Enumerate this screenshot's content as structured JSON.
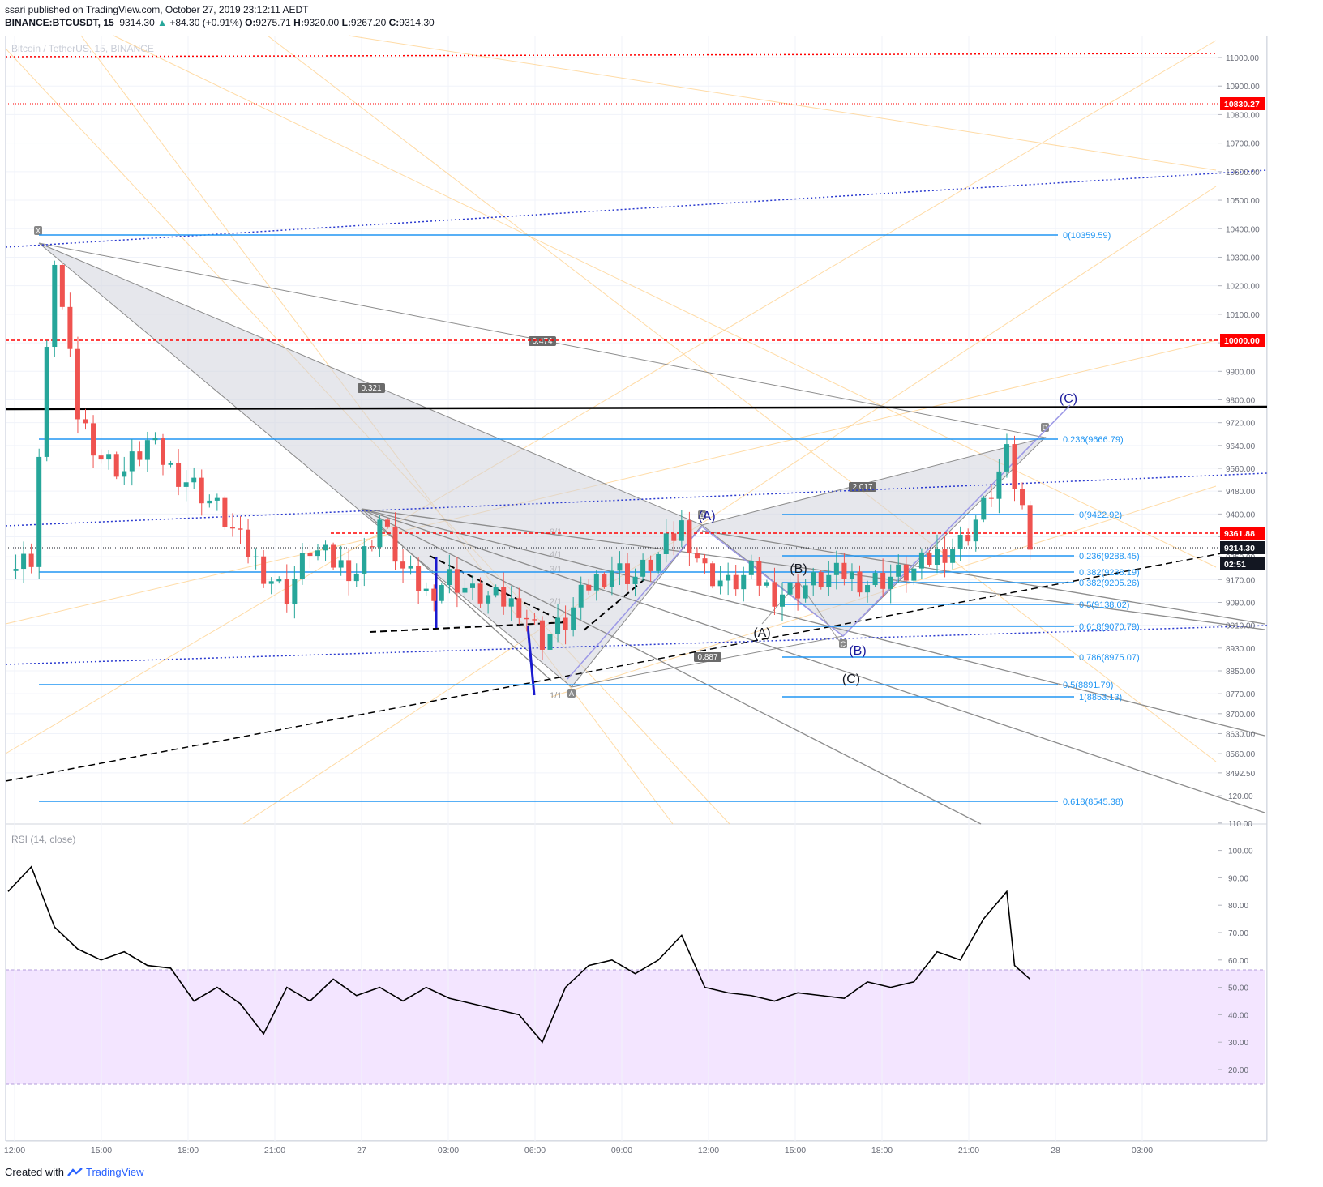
{
  "header": {
    "publisher_line": "ssari published on TradingView.com, October 27, 2019 23:12:11 AEDT",
    "symbol": "BINANCE:BTCUSDT, 15",
    "last": "9314.30",
    "arrow": "▲",
    "change": "+84.30 (+0.91%)",
    "open_label": "O:",
    "open": "9275.71",
    "high_label": "H:",
    "high": "9320.00",
    "low_label": "L:",
    "low": "9267.20",
    "close_label": "C:",
    "close": "9314.30",
    "watermark": "Bitcoin / TetherUS, 15, BINANCE"
  },
  "footer": {
    "created_with": "Created with",
    "brand": "TradingView"
  },
  "colors": {
    "up": "#26a69a",
    "down": "#ef5350",
    "fib": "#2196f3",
    "red_line": "#ff0000",
    "harmonic_fill": "#d1d4dc",
    "rsi_band": "#f3e5ff"
  },
  "price_axis": {
    "ticks": [
      "11000.00",
      "10900.00",
      "10800.00",
      "10700.00",
      "10600.00",
      "10500.00",
      "10400.00",
      "10300.00",
      "10200.00",
      "10100.00",
      "10000.00",
      "9900.00",
      "9800.00",
      "9720.00",
      "9640.00",
      "9560.00",
      "9480.00",
      "9400.00",
      "9320.00",
      "9250.00",
      "9170.00",
      "9090.00",
      "9010.00",
      "8930.00",
      "8850.00",
      "8770.00",
      "8700.00",
      "8630.00",
      "8560.00",
      "8492.50"
    ],
    "labels": [
      {
        "text": "10830.27",
        "style": "red"
      },
      {
        "text": "10000.00",
        "style": "red"
      },
      {
        "text": "9361.88",
        "style": "red"
      },
      {
        "text": "9314.30",
        "style": "dark"
      },
      {
        "text": "02:51",
        "style": "dark"
      }
    ]
  },
  "rsi": {
    "title": "RSI (14, close)",
    "ticks": [
      "120.00",
      "110.00",
      "100.00",
      "90.00",
      "80.00",
      "70.00",
      "60.00",
      "50.00",
      "40.00",
      "30.00",
      "20.00"
    ],
    "band": [
      30,
      70
    ]
  },
  "time_axis": [
    "12:00",
    "15:00",
    "18:00",
    "21:00",
    "27",
    "03:00",
    "06:00",
    "09:00",
    "12:00",
    "15:00",
    "18:00",
    "21:00",
    "28",
    "03:00"
  ],
  "fib_labels": [
    "0(10359.59)",
    "0.236(9666.79)",
    "0(9422.92)",
    "0.236(9288.45)",
    "0.382(9238.19)",
    "0.382(9205.26)",
    "0.5(9138.02)",
    "0.618(9070.79)",
    "0.786(8975.07)",
    "0.5(8891.79)",
    "1(8853.13)",
    "0.618(8545.38)"
  ],
  "pattern_labels": {
    "ratios": [
      "0.474",
      "0.321",
      "2.017",
      "0.887"
    ],
    "points": [
      "X",
      "A",
      "B",
      "C",
      "D"
    ],
    "waves_black": [
      "(A)",
      "(B)",
      "(C)"
    ],
    "waves_blue": [
      "(A)",
      "(B)",
      "(C)"
    ],
    "gann": [
      "8/1",
      "4/1",
      "3/1",
      "2/1",
      "1/1"
    ]
  },
  "chart_data": {
    "type": "candlestick",
    "symbol": "BTCUSDT",
    "interval": "15",
    "ohlc_last": {
      "open": 9275.71,
      "high": 9320.0,
      "low": 9267.2,
      "close": 9314.3
    },
    "ylim": [
      8492.5,
      11060
    ],
    "horizontal_levels": [
      10830.27,
      10000.0,
      9361.88
    ],
    "close_path": [
      [
        0,
        9200
      ],
      [
        3,
        9250
      ],
      [
        6,
        10300
      ],
      [
        9,
        9750
      ],
      [
        12,
        9600
      ],
      [
        15,
        9550
      ],
      [
        18,
        9650
      ],
      [
        21,
        9560
      ],
      [
        24,
        9500
      ],
      [
        27,
        9420
      ],
      [
        30,
        9300
      ],
      [
        33,
        9200
      ],
      [
        36,
        9120
      ],
      [
        39,
        9280
      ],
      [
        42,
        9230
      ],
      [
        45,
        9200
      ],
      [
        48,
        9380
      ],
      [
        51,
        9200
      ],
      [
        54,
        9120
      ],
      [
        57,
        9180
      ],
      [
        60,
        9120
      ],
      [
        63,
        9100
      ],
      [
        66,
        9080
      ],
      [
        69,
        8960
      ],
      [
        72,
        9020
      ],
      [
        75,
        9150
      ],
      [
        78,
        9210
      ],
      [
        81,
        9180
      ],
      [
        84,
        9250
      ],
      [
        87,
        9360
      ],
      [
        90,
        9200
      ],
      [
        93,
        9150
      ],
      [
        96,
        9190
      ],
      [
        99,
        9120
      ],
      [
        102,
        9140
      ],
      [
        105,
        9170
      ],
      [
        108,
        9190
      ],
      [
        111,
        9160
      ],
      [
        114,
        9180
      ],
      [
        117,
        9200
      ],
      [
        120,
        9260
      ],
      [
        123,
        9300
      ],
      [
        126,
        9420
      ],
      [
        129,
        9600
      ],
      [
        132,
        9320
      ]
    ],
    "rsi_path": [
      [
        0,
        85
      ],
      [
        3,
        94
      ],
      [
        6,
        72
      ],
      [
        9,
        64
      ],
      [
        12,
        60
      ],
      [
        15,
        63
      ],
      [
        18,
        58
      ],
      [
        21,
        57
      ],
      [
        24,
        45
      ],
      [
        27,
        50
      ],
      [
        30,
        44
      ],
      [
        33,
        33
      ],
      [
        36,
        50
      ],
      [
        39,
        45
      ],
      [
        42,
        53
      ],
      [
        45,
        47
      ],
      [
        48,
        50
      ],
      [
        51,
        45
      ],
      [
        54,
        50
      ],
      [
        57,
        46
      ],
      [
        60,
        44
      ],
      [
        63,
        42
      ],
      [
        66,
        40
      ],
      [
        69,
        30
      ],
      [
        72,
        50
      ],
      [
        75,
        58
      ],
      [
        78,
        60
      ],
      [
        81,
        55
      ],
      [
        84,
        60
      ],
      [
        87,
        69
      ],
      [
        90,
        50
      ],
      [
        93,
        48
      ],
      [
        96,
        47
      ],
      [
        99,
        45
      ],
      [
        102,
        48
      ],
      [
        105,
        47
      ],
      [
        108,
        46
      ],
      [
        111,
        52
      ],
      [
        114,
        50
      ],
      [
        117,
        52
      ],
      [
        120,
        63
      ],
      [
        123,
        60
      ],
      [
        126,
        75
      ],
      [
        129,
        85
      ],
      [
        130,
        58
      ],
      [
        132,
        53
      ]
    ]
  }
}
